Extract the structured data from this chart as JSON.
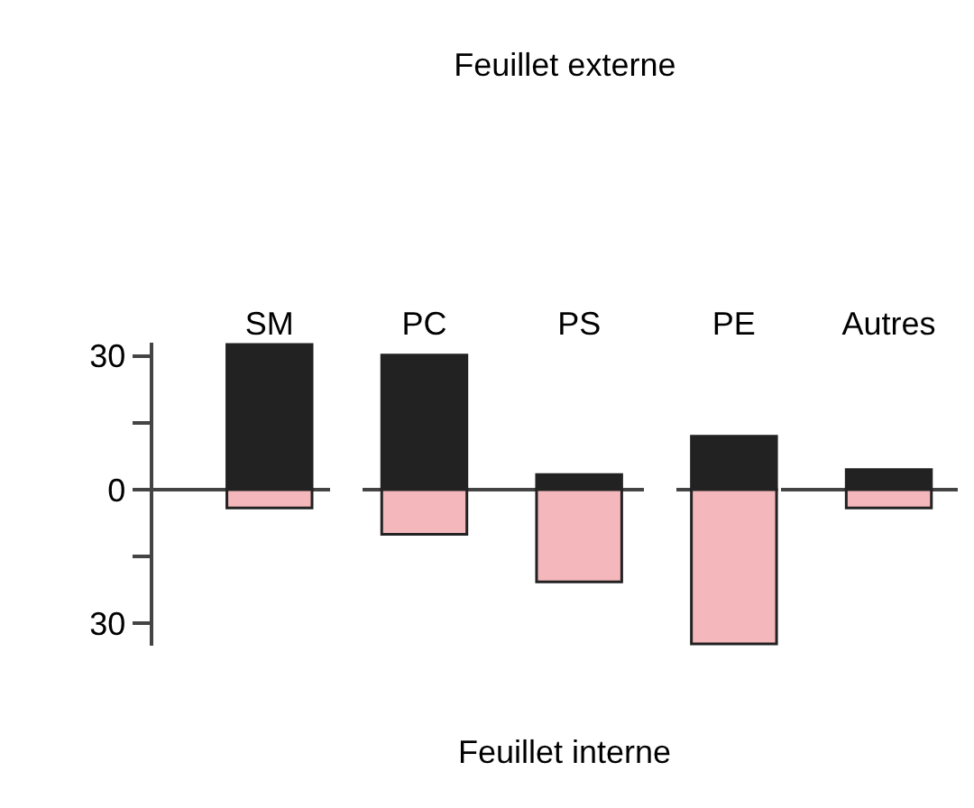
{
  "chart_data": {
    "type": "bar",
    "title": "Feuillet externe",
    "annotations": [
      "Feuillet interne"
    ],
    "categories": [
      "SM",
      "PC",
      "PS",
      "PE",
      "Autres"
    ],
    "series": [
      {
        "color": "#222222",
        "values": [
          32.6,
          30.2,
          3.4,
          12,
          4.5
        ]
      },
      {
        "color": "#f4b8bc",
        "values": [
          -4.1,
          -10,
          -20.7,
          -34.6,
          -4.1
        ]
      }
    ],
    "stacked": true,
    "ylim": [
      -35,
      33
    ],
    "yticks": [
      30,
      {
        "value": 15,
        "label": null
      },
      0,
      {
        "value": -15,
        "label": null
      },
      {
        "value": -30,
        "label": "30"
      }
    ],
    "ref_lines": [
      {
        "axis": "y",
        "value": 0,
        "line_style": "dashed",
        "color": "#444444"
      }
    ]
  }
}
